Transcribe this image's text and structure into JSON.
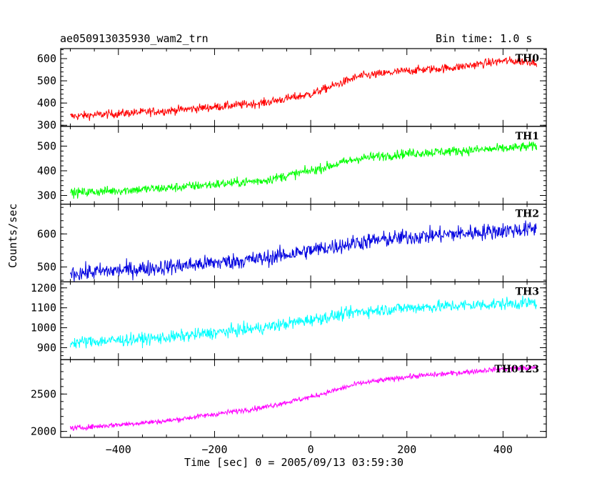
{
  "header": {
    "title_left": "ae050913035930_wam2_trn",
    "title_right": "Bin time: 1.0 s"
  },
  "axes": {
    "xlabel": "Time [sec] 0 = 2005/09/13 03:59:30",
    "ylabel": "Counts/sec"
  },
  "chart_data": [
    {
      "type": "line",
      "label": "TH0",
      "color": "#ff0000",
      "xlim": [
        -520,
        490
      ],
      "ylim": [
        295,
        645
      ],
      "yticks": [
        300,
        400,
        500,
        600
      ],
      "trend_x": [
        -500,
        -300,
        -100,
        0,
        100,
        200,
        300,
        400,
        470
      ],
      "trend_y": [
        340,
        365,
        400,
        440,
        520,
        545,
        560,
        590,
        585
      ],
      "noise": 25
    },
    {
      "type": "line",
      "label": "TH1",
      "color": "#00ff00",
      "xlim": [
        -520,
        490
      ],
      "ylim": [
        265,
        580
      ],
      "yticks": [
        300,
        400,
        500
      ],
      "trend_x": [
        -500,
        -300,
        -100,
        0,
        100,
        200,
        300,
        400,
        470
      ],
      "trend_y": [
        310,
        330,
        360,
        400,
        450,
        470,
        480,
        490,
        500
      ],
      "noise": 25
    },
    {
      "type": "line",
      "label": "TH2",
      "color": "#0000e0",
      "xlim": [
        -520,
        490
      ],
      "ylim": [
        455,
        690
      ],
      "yticks": [
        500,
        600
      ],
      "trend_x": [
        -500,
        -300,
        -100,
        0,
        100,
        200,
        300,
        400,
        470
      ],
      "trend_y": [
        480,
        500,
        525,
        550,
        575,
        590,
        600,
        610,
        615
      ],
      "noise": 32
    },
    {
      "type": "line",
      "label": "TH3",
      "color": "#00ffff",
      "xlim": [
        -520,
        490
      ],
      "ylim": [
        840,
        1230
      ],
      "yticks": [
        900,
        1000,
        1100,
        1200
      ],
      "trend_x": [
        -500,
        -300,
        -100,
        0,
        100,
        200,
        300,
        400,
        470
      ],
      "trend_y": [
        925,
        950,
        1000,
        1040,
        1080,
        1100,
        1110,
        1120,
        1125
      ],
      "noise": 40
    },
    {
      "type": "line",
      "label": "TH0123",
      "color": "#ff00ff",
      "xlim": [
        -520,
        490
      ],
      "ylim": [
        1920,
        2960
      ],
      "yticks": [
        2000,
        2500
      ],
      "trend_x": [
        -500,
        -300,
        -100,
        0,
        100,
        200,
        300,
        400,
        470
      ],
      "trend_y": [
        2040,
        2140,
        2320,
        2460,
        2640,
        2730,
        2780,
        2840,
        2850
      ],
      "noise": 45
    }
  ],
  "xticks": [
    -400,
    -200,
    0,
    200,
    400
  ]
}
